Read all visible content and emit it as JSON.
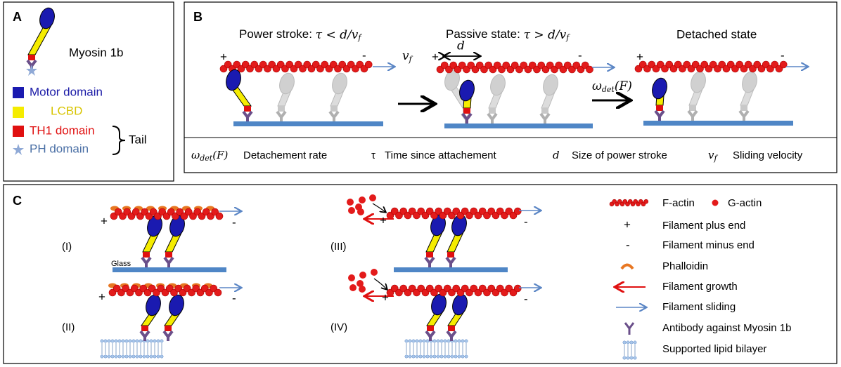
{
  "panel_a": {
    "label": "A",
    "title": "Myosin 1b",
    "legend": [
      "Motor domain",
      "LCBD",
      "TH1 domain",
      "PH domain"
    ],
    "tail": "Tail"
  },
  "panel_b": {
    "label": "B",
    "states": [
      {
        "title": "Power stroke: ",
        "formula": "τ < d/v",
        "sub": "f"
      },
      {
        "title": "Passive state: ",
        "formula": "τ > d/v",
        "sub": "f"
      },
      {
        "title": "Detached state"
      }
    ],
    "plus": "+",
    "minus": "-",
    "v": "v",
    "v_sub": "f",
    "d": "d",
    "omega": "ω",
    "omega_sub": "det",
    "omega_arg": "(F)",
    "definitions": [
      "Detachement rate",
      "τ",
      "Time since attachement",
      "Size of power stroke",
      "Sliding velocity"
    ]
  },
  "panel_c": {
    "label": "C",
    "conditions": [
      "(I)",
      "(II)",
      "(III)",
      "(IV)"
    ],
    "glass": "Glass",
    "legend": [
      "F-actin",
      "G-actin",
      "Filament plus end",
      "Filament minus end",
      "Phalloidin",
      "Filament growth",
      "Filament sliding",
      "Antibody against Myosin 1b",
      "Supported lipid bilayer"
    ],
    "plus_symbol": "+",
    "minus_symbol": "-"
  }
}
